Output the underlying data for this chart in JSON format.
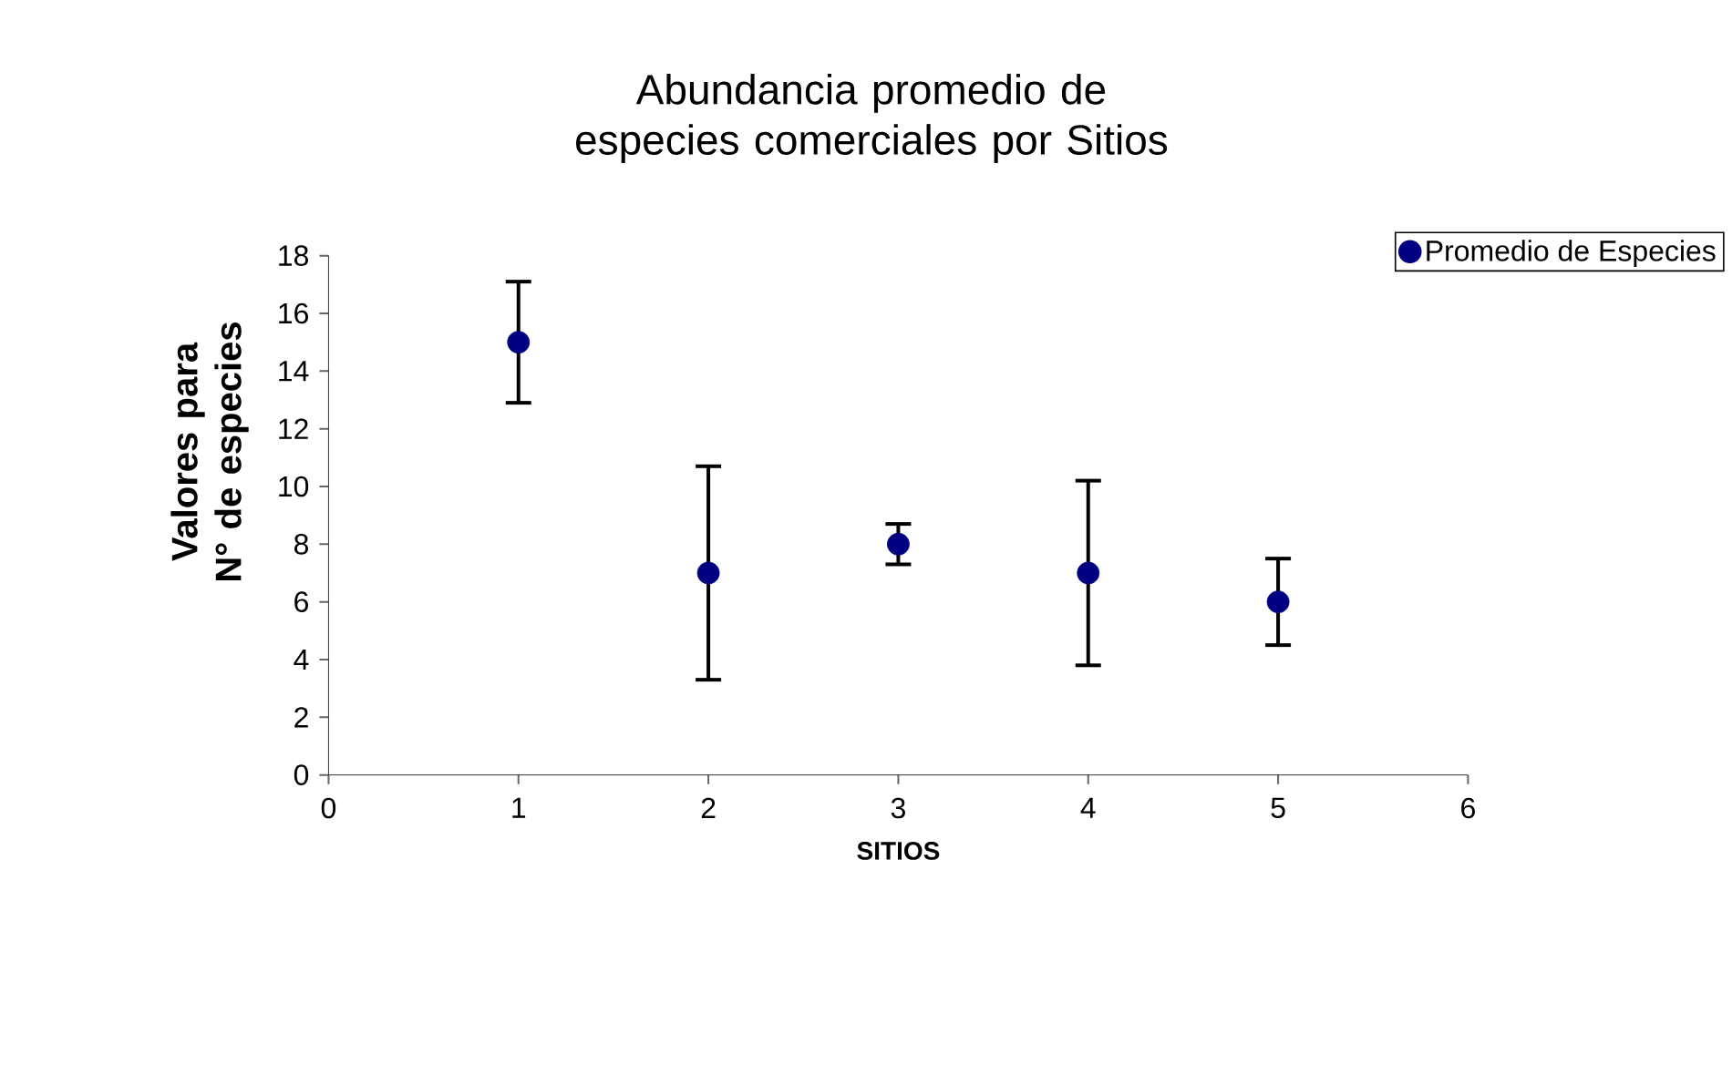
{
  "chart_data": {
    "type": "scatter",
    "title": "Abundancia promedio de especies comerciales por Sitios",
    "xlabel": "SITIOS",
    "ylabel": "Valores para N° de especies",
    "x": [
      1,
      2,
      3,
      4,
      5
    ],
    "series": [
      {
        "name": "Promedio de Especies",
        "color": "#000080",
        "values": [
          15,
          7,
          8,
          7,
          6
        ],
        "errors": [
          2.1,
          3.7,
          0.7,
          3.2,
          1.5
        ]
      }
    ],
    "xlim": [
      0,
      6
    ],
    "ylim": [
      0,
      18
    ],
    "xticks": [
      0,
      1,
      2,
      3,
      4,
      5,
      6
    ],
    "yticks": [
      0,
      2,
      4,
      6,
      8,
      10,
      12,
      14,
      16,
      18
    ],
    "legend": "top right",
    "marker": "circle",
    "grid": false
  }
}
